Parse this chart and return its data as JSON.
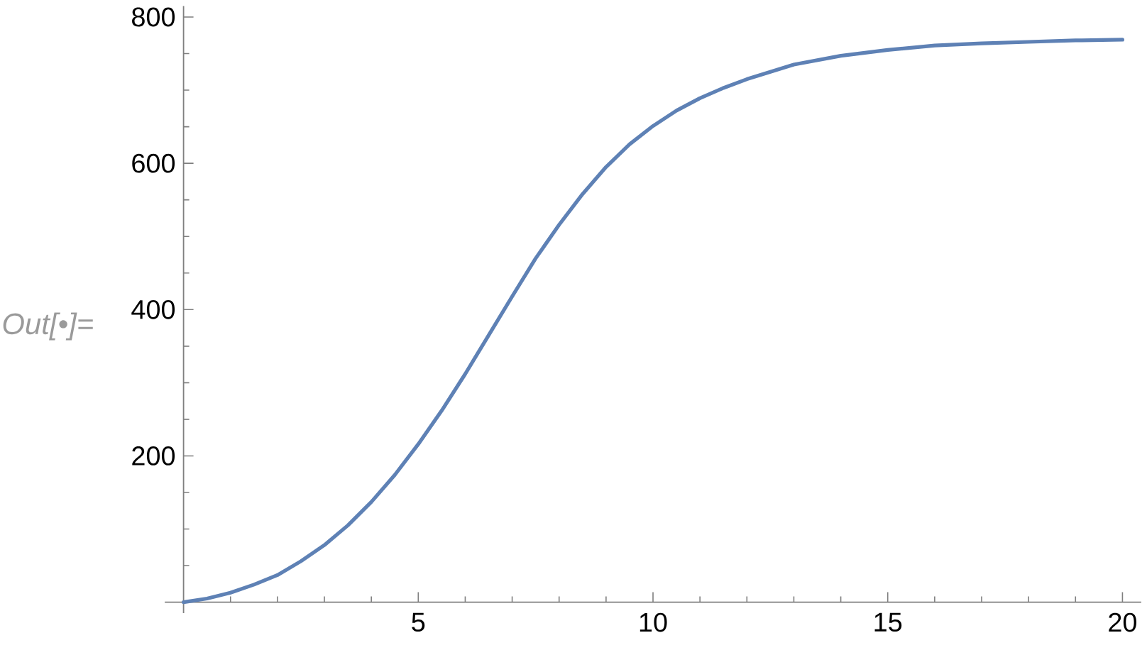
{
  "chart_data": {
    "type": "line",
    "annotations": [
      "Out[•]="
    ],
    "x": [
      0,
      0.5,
      1,
      1.5,
      2,
      2.5,
      3,
      3.5,
      4,
      4.5,
      5,
      5.5,
      6,
      6.5,
      7,
      7.5,
      8,
      8.5,
      9,
      9.5,
      10,
      10.5,
      11,
      11.5,
      12,
      13,
      14,
      15,
      16,
      17,
      18,
      19,
      20
    ],
    "values": [
      0,
      5,
      13,
      24,
      37,
      56,
      78,
      105,
      137,
      174,
      216,
      262,
      312,
      365,
      418,
      470,
      516,
      558,
      595,
      626,
      651,
      672,
      689,
      703,
      715,
      735,
      747,
      755,
      761,
      764,
      766,
      768,
      769
    ],
    "color": "#5e81b5",
    "xlim": [
      -0.4,
      20.4
    ],
    "ylim": [
      -15,
      815
    ],
    "xticks": [
      {
        "value": 1,
        "label": null
      },
      {
        "value": 2,
        "label": null
      },
      {
        "value": 3,
        "label": null
      },
      {
        "value": 4,
        "label": null
      },
      5,
      {
        "value": 6,
        "label": null
      },
      {
        "value": 7,
        "label": null
      },
      {
        "value": 8,
        "label": null
      },
      {
        "value": 9,
        "label": null
      },
      10,
      {
        "value": 11,
        "label": null
      },
      {
        "value": 12,
        "label": null
      },
      {
        "value": 13,
        "label": null
      },
      {
        "value": 14,
        "label": null
      },
      15,
      {
        "value": 16,
        "label": null
      },
      {
        "value": 17,
        "label": null
      },
      {
        "value": 18,
        "label": null
      },
      {
        "value": 19,
        "label": null
      },
      20
    ],
    "yticks": [
      {
        "value": 50,
        "label": null
      },
      {
        "value": 100,
        "label": null
      },
      {
        "value": 150,
        "label": null
      },
      200,
      {
        "value": 250,
        "label": null
      },
      {
        "value": 300,
        "label": null
      },
      {
        "value": 350,
        "label": null
      },
      400,
      {
        "value": 450,
        "label": null
      },
      {
        "value": 500,
        "label": null
      },
      {
        "value": 550,
        "label": null
      },
      600,
      {
        "value": 650,
        "label": null
      },
      {
        "value": 700,
        "label": null
      },
      {
        "value": 750,
        "label": null
      },
      800
    ]
  }
}
